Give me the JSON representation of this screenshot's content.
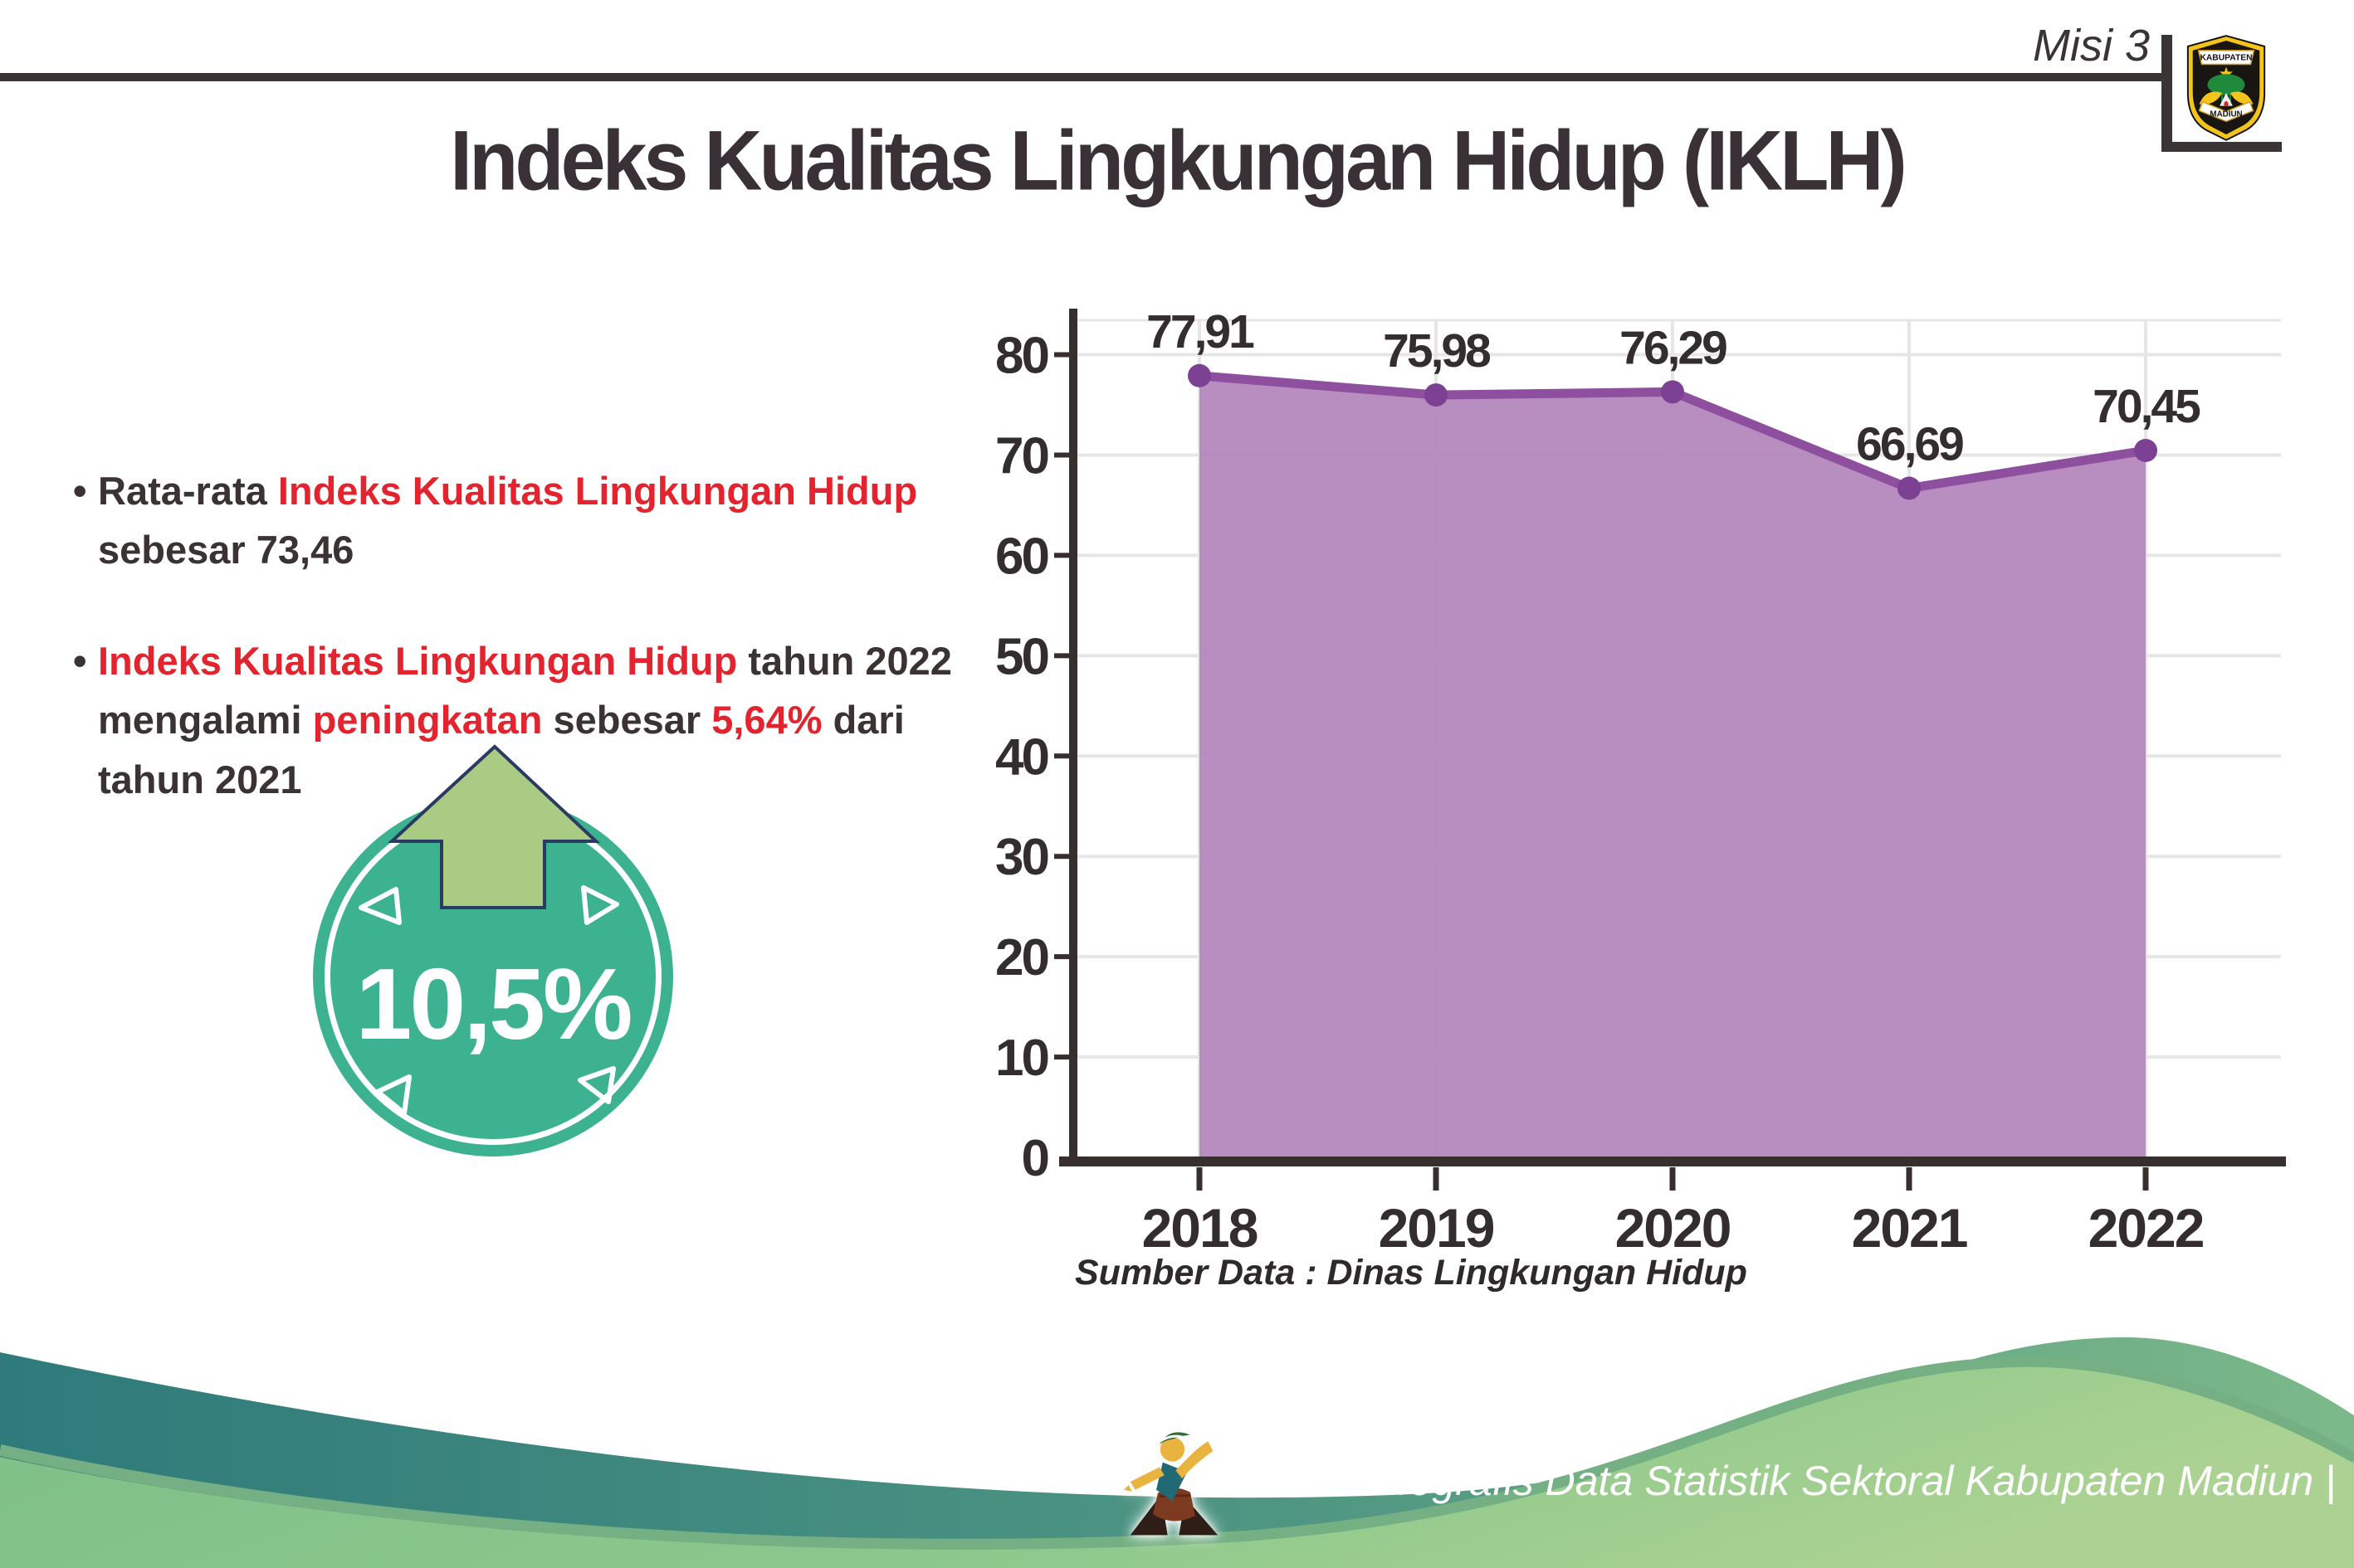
{
  "header": {
    "misi_label": "Misi 3",
    "title": "Indeks Kualitas Lingkungan Hidup (IKLH)",
    "logo": {
      "top_text": "KABUPATEN",
      "bottom_text": "MADIUN"
    }
  },
  "bullets": {
    "bullet1": {
      "marker": "•",
      "text_start": "Rata-rata ",
      "highlight": "Indeks Kualitas Lingkungan Hidup",
      "line2": "sebesar 73,46"
    },
    "bullet2": {
      "marker": "•",
      "highlight1": "Indeks Kualitas Lingkungan Hidup",
      "text1": " tahun 2022",
      "text2": "mengalami ",
      "highlight2": "peningkatan",
      "text3": " sebesar ",
      "highlight3": "5,64%",
      "text4": " dari",
      "line3": "tahun 2021"
    }
  },
  "badge": {
    "value": "10,5%",
    "direction": "up"
  },
  "chart_data": {
    "type": "area",
    "title": "",
    "categories": [
      "2018",
      "2019",
      "2020",
      "2021",
      "2022"
    ],
    "values": [
      77.91,
      75.98,
      76.29,
      66.69,
      70.45
    ],
    "point_labels": [
      "77,91",
      "75,98",
      "76,29",
      "66,69",
      "70,45"
    ],
    "xlabel": "",
    "ylabel": "",
    "ylim": [
      0,
      85
    ],
    "yticks": [
      0,
      10,
      20,
      30,
      40,
      50,
      60,
      70,
      80
    ],
    "grid": true,
    "legend": "none",
    "colors": {
      "area_fill": "#b284bc",
      "line": "#8e4f9e",
      "point": "#7d4193",
      "label": "#332d2f",
      "gridline": "#e8e5e7",
      "axis": "#362f2e"
    }
  },
  "chart_source": "Sumber Data : Dinas Lingkungan Hidup",
  "footer": {
    "caption": "Media Infografis Data Statistik Sektoral Kabupaten Madiun |"
  }
}
